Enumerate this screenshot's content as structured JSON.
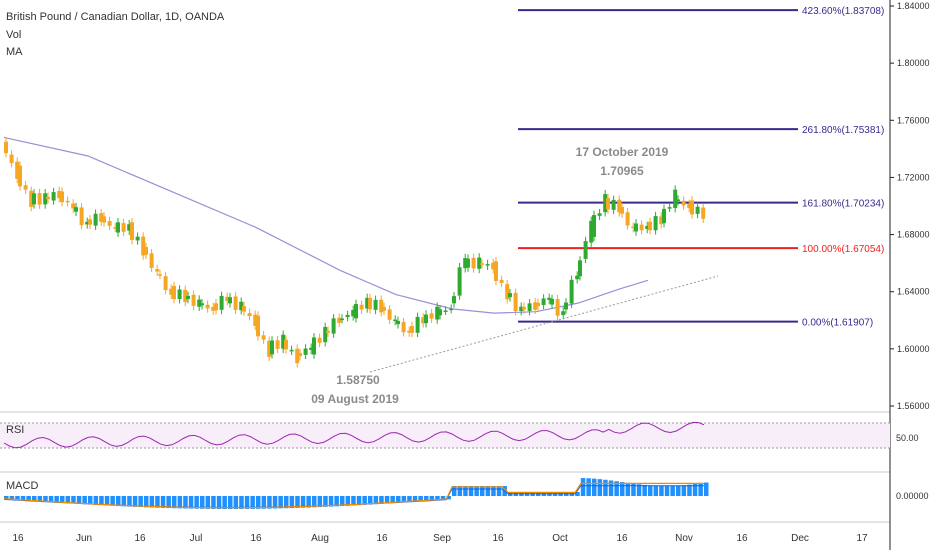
{
  "header": {
    "title": "British Pound / Canadian Dollar, 1D, OANDA",
    "vol_label": "Vol",
    "ma_label": "MA"
  },
  "colors": {
    "up": "#2eaa2e",
    "down": "#f5a623",
    "ma": "#9b8fd6",
    "fib_line": "#3a2a8c",
    "fib_red": "#f02020",
    "rsi_line": "#9b27b0",
    "macd_hist": "#1e90ff",
    "macd_line": "#f08c00",
    "signal_line": "#1e5fd6",
    "grid_sep": "#222222"
  },
  "annotations": {
    "low_price": "1.58750",
    "low_date": "09 August 2019",
    "high_date": "17 October 2019",
    "high_price": "1.70965"
  },
  "panels": {
    "rsi_label": "RSI",
    "rsi_tick": "50.00",
    "macd_label": "MACD",
    "macd_tick": "0.00000"
  },
  "chart_data": {
    "type": "line",
    "title": "British Pound / Canadian Dollar, 1D, OANDA",
    "y_ticks": [
      "1.84000",
      "1.80000",
      "1.76000",
      "1.72000",
      "1.68000",
      "1.64000",
      "1.60000",
      "1.56000"
    ],
    "ylim": [
      1.56,
      1.84
    ],
    "x_ticks": [
      "16",
      "Jun",
      "16",
      "Jul",
      "16",
      "Aug",
      "16",
      "Sep",
      "16",
      "Oct",
      "16",
      "Nov",
      "16",
      "Dec",
      "17"
    ],
    "fib_levels": [
      {
        "label": "423.60%(1.83708)",
        "value": 1.83708
      },
      {
        "label": "261.80%(1.75381)",
        "value": 1.75381
      },
      {
        "label": "161.80%(1.70234)",
        "value": 1.70234
      },
      {
        "label": "100.00%(1.67054)",
        "value": 1.67054
      },
      {
        "label": "0.00%(1.61907)",
        "value": 1.61907
      }
    ],
    "price_path": [
      [
        0,
        1.745
      ],
      [
        5,
        1.725
      ],
      [
        10,
        1.705
      ],
      [
        15,
        1.705
      ],
      [
        20,
        1.708
      ],
      [
        25,
        1.7
      ],
      [
        30,
        1.688
      ],
      [
        35,
        1.692
      ],
      [
        40,
        1.685
      ],
      [
        45,
        1.685
      ],
      [
        50,
        1.672
      ],
      [
        55,
        1.655
      ],
      [
        60,
        1.64
      ],
      [
        65,
        1.637
      ],
      [
        70,
        1.632
      ],
      [
        75,
        1.628
      ],
      [
        80,
        1.635
      ],
      [
        85,
        1.63
      ],
      [
        90,
        1.62
      ],
      [
        95,
        1.6
      ],
      [
        100,
        1.605
      ],
      [
        105,
        1.595
      ],
      [
        110,
        1.6
      ],
      [
        115,
        1.61
      ],
      [
        120,
        1.62
      ],
      [
        125,
        1.625
      ],
      [
        130,
        1.632
      ],
      [
        135,
        1.63
      ],
      [
        140,
        1.62
      ],
      [
        145,
        1.612
      ],
      [
        150,
        1.62
      ],
      [
        155,
        1.625
      ],
      [
        160,
        1.628
      ],
      [
        165,
        1.66
      ],
      [
        170,
        1.66
      ],
      [
        175,
        1.658
      ],
      [
        180,
        1.64
      ],
      [
        185,
        1.628
      ],
      [
        190,
        1.63
      ],
      [
        195,
        1.635
      ],
      [
        200,
        1.625
      ],
      [
        205,
        1.65
      ],
      [
        210,
        1.682
      ],
      [
        215,
        1.702
      ],
      [
        220,
        1.7
      ],
      [
        225,
        1.685
      ],
      [
        230,
        1.685
      ],
      [
        235,
        1.69
      ],
      [
        240,
        1.705
      ],
      [
        245,
        1.7
      ],
      [
        250,
        1.695
      ]
    ],
    "ma_path": [
      [
        0,
        1.748
      ],
      [
        30,
        1.735
      ],
      [
        60,
        1.71
      ],
      [
        90,
        1.685
      ],
      [
        120,
        1.655
      ],
      [
        140,
        1.638
      ],
      [
        160,
        1.628
      ],
      [
        175,
        1.625
      ],
      [
        190,
        1.626
      ],
      [
        205,
        1.632
      ],
      [
        220,
        1.642
      ],
      [
        230,
        1.648
      ]
    ]
  }
}
